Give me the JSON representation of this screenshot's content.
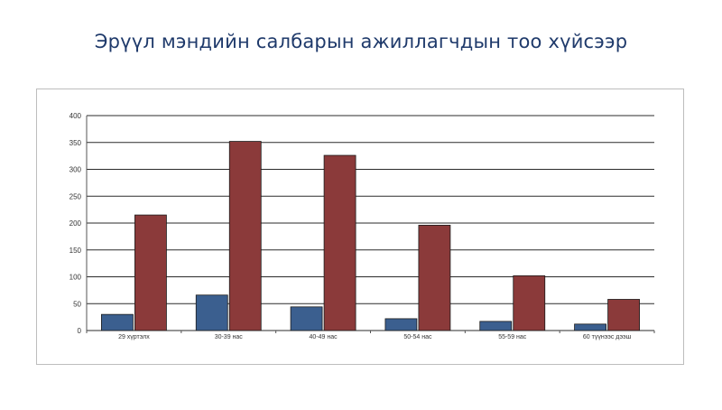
{
  "page": {
    "title": "Эрүүл мэндийн салбарын ажиллагчдын тоо хүйсээр"
  },
  "colors": {
    "title": "#1f3a6b",
    "series_1": "#3b5f8f",
    "series_2": "#8b3a3a",
    "grid": "#2b2b2b"
  },
  "chart_data": {
    "type": "bar",
    "title": "",
    "xlabel": "",
    "ylabel": "",
    "categories": [
      "29 хүртэлх",
      "30-39 нас",
      "40-49 нас",
      "50-54 нас",
      "55-59 нас",
      "60 түүнээс дээш"
    ],
    "ylim": [
      0,
      400
    ],
    "yticks": [
      0,
      50,
      100,
      150,
      200,
      250,
      300,
      350,
      400
    ],
    "grid": true,
    "legend": "none",
    "series": [
      {
        "values": [
          30,
          66,
          44,
          22,
          17,
          12
        ],
        "color": "#3b5f8f"
      },
      {
        "values": [
          215,
          352,
          326,
          196,
          102,
          58
        ],
        "color": "#8b3a3a"
      }
    ]
  }
}
